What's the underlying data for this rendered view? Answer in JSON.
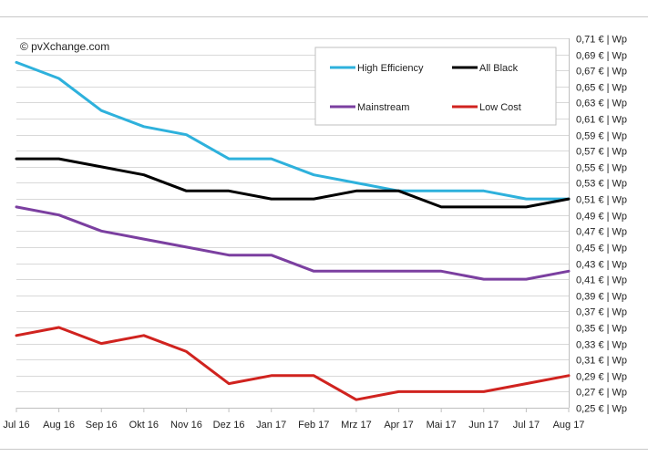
{
  "chart_data": {
    "type": "line",
    "copyright": "© pvXchange.com",
    "categories": [
      "Jul 16",
      "Aug 16",
      "Sep 16",
      "Okt 16",
      "Nov 16",
      "Dez 16",
      "Jan 17",
      "Feb 17",
      "Mrz 17",
      "Apr 17",
      "Mai 17",
      "Jun 17",
      "Jul 17",
      "Aug 17"
    ],
    "ylim": [
      0.25,
      0.71
    ],
    "ytick_values": [
      0.25,
      0.27,
      0.29,
      0.31,
      0.33,
      0.35,
      0.37,
      0.39,
      0.41,
      0.43,
      0.45,
      0.47,
      0.49,
      0.51,
      0.53,
      0.55,
      0.57,
      0.59,
      0.61,
      0.63,
      0.65,
      0.67,
      0.69,
      0.71
    ],
    "ytick_labels": [
      "0,25 € | Wp",
      "0,27 € | Wp",
      "0,29 € | Wp",
      "0,31 € | Wp",
      "0,33 € | Wp",
      "0,35 € | Wp",
      "0,37 € | Wp",
      "0,39 € | Wp",
      "0,41 € | Wp",
      "0,43 € | Wp",
      "0,45 € | Wp",
      "0,47 € | Wp",
      "0,49 € | Wp",
      "0,51 € | Wp",
      "0,53 € | Wp",
      "0,55 € | Wp",
      "0,57 € | Wp",
      "0,59 € | Wp",
      "0,61 € | Wp",
      "0,63 € | Wp",
      "0,65 € | Wp",
      "0,67 € | Wp",
      "0,69 € | Wp",
      "0,71 € | Wp"
    ],
    "grid": true,
    "legend_position": "top-right",
    "series": [
      {
        "name": "High Efficiency",
        "color": "#2eb1dc",
        "values": [
          0.68,
          0.66,
          0.62,
          0.6,
          0.59,
          0.56,
          0.56,
          0.54,
          0.53,
          0.52,
          0.52,
          0.52,
          0.51,
          0.51
        ]
      },
      {
        "name": "All Black",
        "color": "#000000",
        "values": [
          0.56,
          0.56,
          0.55,
          0.54,
          0.52,
          0.52,
          0.51,
          0.51,
          0.52,
          0.52,
          0.5,
          0.5,
          0.5,
          0.51
        ]
      },
      {
        "name": "Mainstream",
        "color": "#7b3fa0",
        "values": [
          0.5,
          0.49,
          0.47,
          0.46,
          0.45,
          0.44,
          0.44,
          0.42,
          0.42,
          0.42,
          0.42,
          0.41,
          0.41,
          0.42
        ]
      },
      {
        "name": "Low Cost",
        "color": "#d0231f",
        "values": [
          0.34,
          0.35,
          0.33,
          0.34,
          0.32,
          0.28,
          0.29,
          0.29,
          0.26,
          0.27,
          0.27,
          0.27,
          0.28,
          0.29
        ]
      }
    ]
  }
}
